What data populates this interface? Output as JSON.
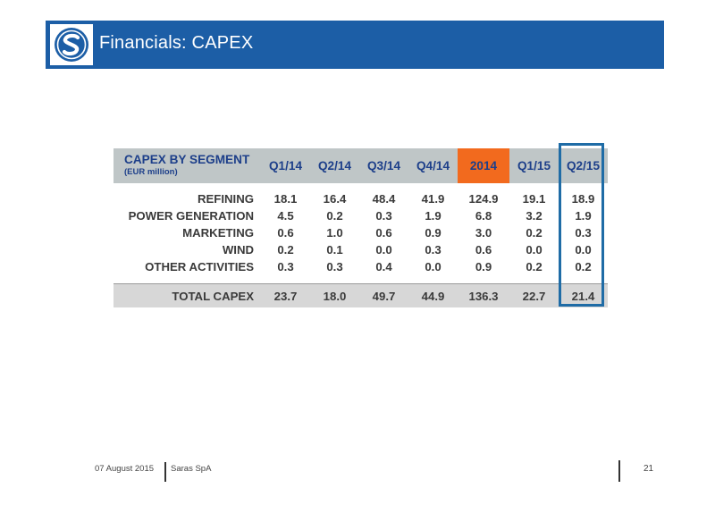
{
  "header": {
    "title": "Financials: CAPEX",
    "logo_icon": "saras-s-logo",
    "bar_color": "#1c5ea6"
  },
  "table": {
    "segment_header": "CAPEX BY SEGMENT",
    "segment_subheader": "(EUR million)",
    "columns": [
      "Q1/14",
      "Q2/14",
      "Q3/14",
      "Q4/14",
      "2014",
      "Q1/15",
      "Q2/15"
    ],
    "highlight_column": "2014",
    "highlight_color": "#f26a1e",
    "boxed_column": "Q2/15",
    "rows": [
      {
        "label": "REFINING",
        "values": [
          "18.1",
          "16.4",
          "48.4",
          "41.9",
          "124.9",
          "19.1",
          "18.9"
        ]
      },
      {
        "label": "POWER GENERATION",
        "values": [
          "4.5",
          "0.2",
          "0.3",
          "1.9",
          "6.8",
          "3.2",
          "1.9"
        ]
      },
      {
        "label": "MARKETING",
        "values": [
          "0.6",
          "1.0",
          "0.6",
          "0.9",
          "3.0",
          "0.2",
          "0.3"
        ]
      },
      {
        "label": "WIND",
        "values": [
          "0.2",
          "0.1",
          "0.0",
          "0.3",
          "0.6",
          "0.0",
          "0.0"
        ]
      },
      {
        "label": "OTHER ACTIVITIES",
        "values": [
          "0.3",
          "0.3",
          "0.4",
          "0.0",
          "0.9",
          "0.2",
          "0.2"
        ]
      }
    ],
    "total": {
      "label": "TOTAL CAPEX",
      "values": [
        "23.7",
        "18.0",
        "49.7",
        "44.9",
        "136.3",
        "22.7",
        "21.4"
      ]
    }
  },
  "footer": {
    "date": "07 August 2015",
    "company": "Saras SpA",
    "page": "21"
  }
}
